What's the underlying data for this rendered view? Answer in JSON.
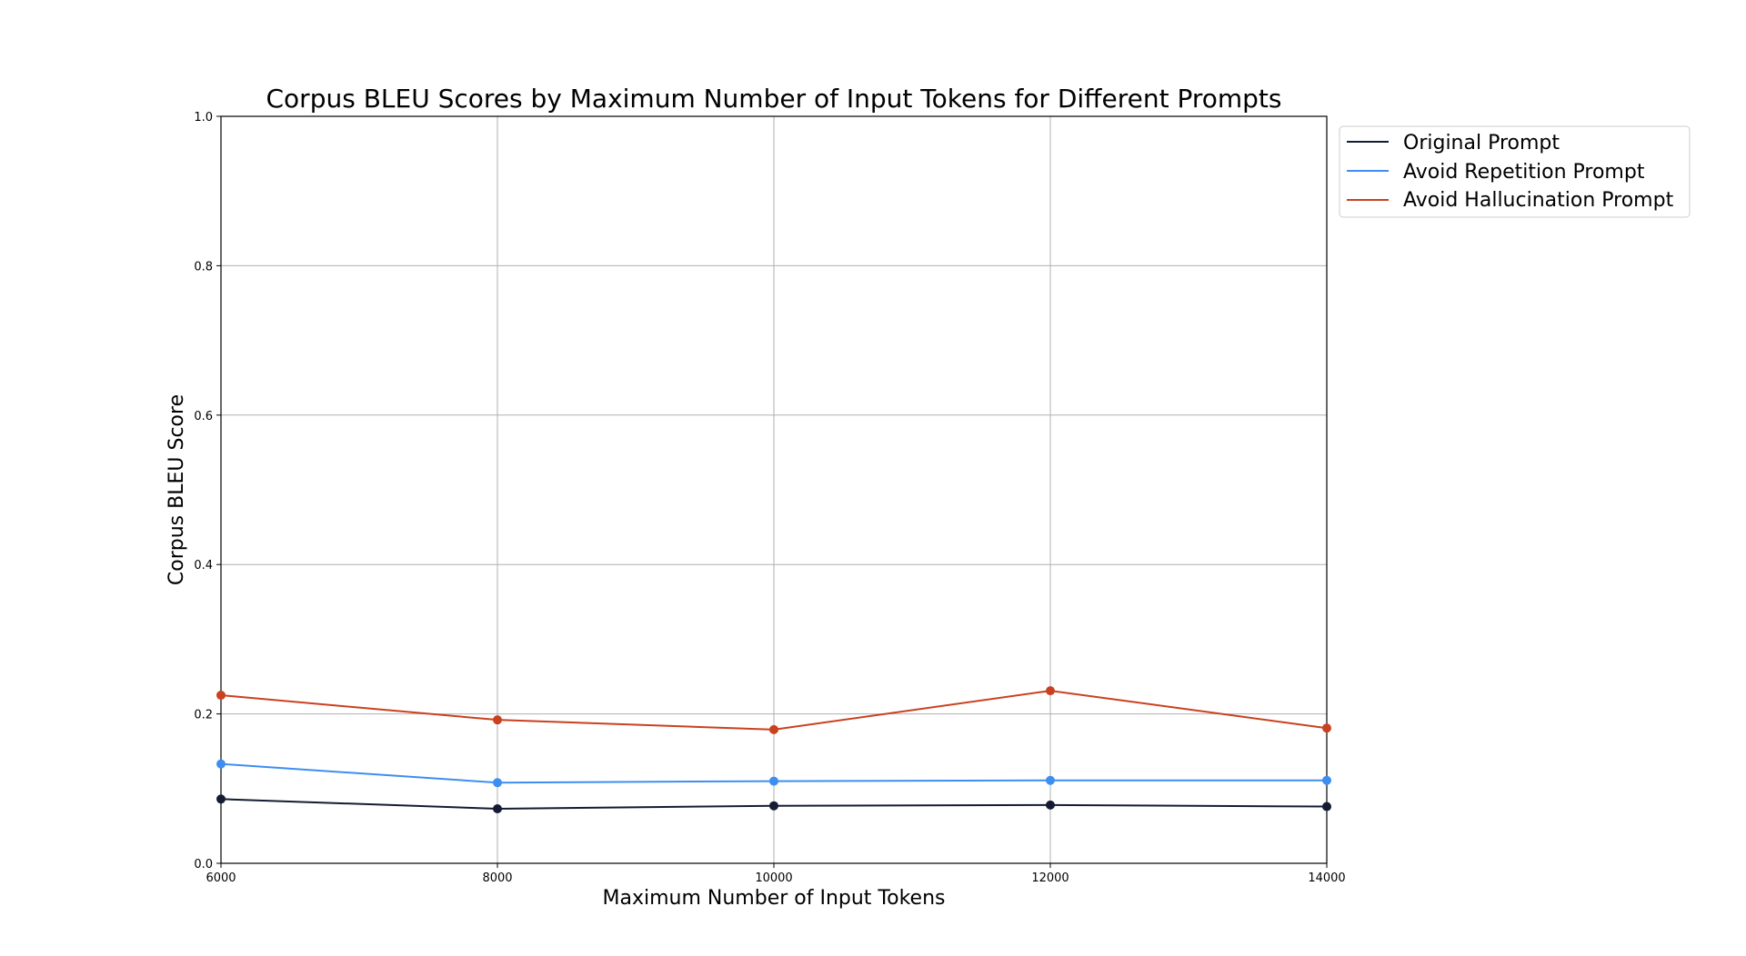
{
  "chart_data": {
    "type": "line",
    "title": "Corpus BLEU Scores by Maximum Number of Input Tokens for Different Prompts",
    "xlabel": "Maximum Number of Input Tokens",
    "ylabel": "Corpus BLEU Score",
    "x": [
      6000,
      8000,
      10000,
      12000,
      14000
    ],
    "xlim": [
      6000,
      14000
    ],
    "ylim": [
      0.0,
      1.0
    ],
    "xticks": [
      "6000",
      "8000",
      "10000",
      "12000",
      "14000"
    ],
    "yticks": [
      "0.0",
      "0.2",
      "0.4",
      "0.6",
      "0.8",
      "1.0"
    ],
    "grid": true,
    "legend_position": "outside-top-right",
    "series": [
      {
        "name": "Original Prompt",
        "color": "#141c33",
        "values": [
          0.086,
          0.073,
          0.077,
          0.078,
          0.076
        ]
      },
      {
        "name": "Avoid Repetition Prompt",
        "color": "#3d8ef0",
        "values": [
          0.133,
          0.108,
          0.11,
          0.111,
          0.111
        ]
      },
      {
        "name": "Avoid Hallucination Prompt",
        "color": "#c9411e",
        "values": [
          0.225,
          0.192,
          0.179,
          0.231,
          0.181
        ]
      }
    ]
  }
}
